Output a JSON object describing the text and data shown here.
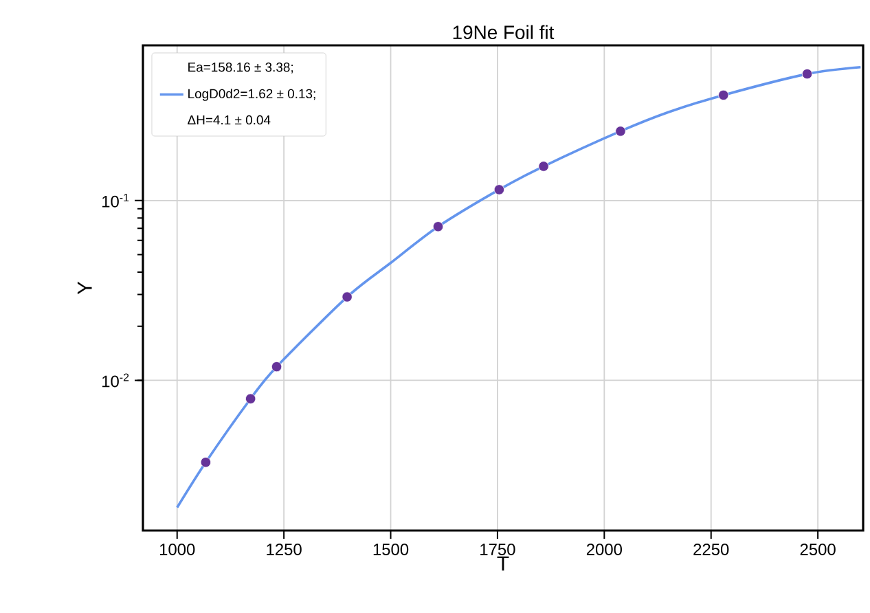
{
  "chart_data": {
    "type": "scatter",
    "title": "19Ne Foil fit",
    "xlabel": "T",
    "ylabel": "Y",
    "log": "y",
    "grid": true,
    "legend": "top left",
    "xlim": [
      920,
      2606
    ],
    "ylim": [
      0.00146,
      0.73
    ],
    "xticks": [
      1000,
      1250,
      1500,
      1750,
      2000,
      2250,
      2500
    ],
    "yticks": [
      {
        "value": 0.01,
        "label": "10$^{-2}$"
      },
      {
        "value": 0.1,
        "label": "10$^{-1}$"
      }
    ],
    "annotations": [
      "Ea=158.16 ± 3.38;",
      "ΔH=4.1 ± 0.04"
    ],
    "series": [
      {
        "type": "line",
        "name": "LogD0d2=1.62 ± 0.13;",
        "color": "#6495ed",
        "marker": "none",
        "x": [
          1000,
          1067,
          1172,
          1233,
          1398,
          1500,
          1611,
          1754,
          1858,
          2038,
          2150,
          2279,
          2475,
          2600
        ],
        "values": [
          0.00196,
          0.0035,
          0.0079,
          0.0119,
          0.0291,
          0.045,
          0.0716,
          0.115,
          0.155,
          0.243,
          0.31,
          0.386,
          0.506,
          0.552
        ]
      },
      {
        "color": "#663399",
        "marker": "circle",
        "x": [
          1067,
          1172,
          1233,
          1398,
          1611,
          1754,
          1858,
          2038,
          2279,
          2475
        ],
        "values": [
          0.0035,
          0.0079,
          0.0119,
          0.0291,
          0.0716,
          0.115,
          0.155,
          0.243,
          0.386,
          0.506
        ]
      }
    ]
  }
}
